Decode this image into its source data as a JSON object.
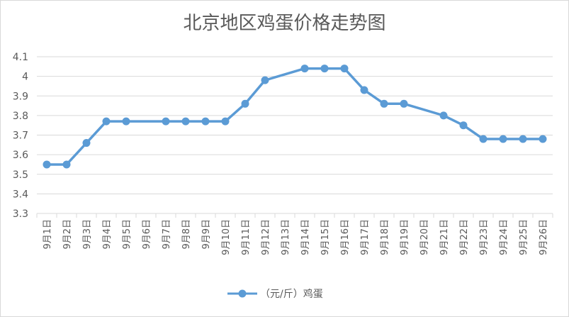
{
  "chart_data": {
    "type": "line",
    "title": "北京地区鸡蛋价格走势图",
    "xlabel": "",
    "ylabel": "",
    "categories": [
      "9月1日",
      "9月2日",
      "9月3日",
      "9月4日",
      "9月5日",
      "9月6日",
      "9月7日",
      "9月8日",
      "9月9日",
      "9月10日",
      "9月11日",
      "9月12日",
      "9月13日",
      "9月14日",
      "9月15日",
      "9月16日",
      "9月17日",
      "9月18日",
      "9月19日",
      "9月20日",
      "9月21日",
      "9月22日",
      "9月23日",
      "9月24日",
      "9月25日",
      "9月26日"
    ],
    "series": [
      {
        "name": "（元/斤）鸡蛋",
        "color": "#5b9bd5",
        "values": [
          3.55,
          3.55,
          3.66,
          3.77,
          3.77,
          null,
          3.77,
          3.77,
          3.77,
          3.77,
          3.86,
          3.98,
          null,
          4.04,
          4.04,
          4.04,
          3.93,
          3.86,
          3.86,
          null,
          3.8,
          3.75,
          3.68,
          3.68,
          3.68,
          3.68
        ]
      }
    ],
    "ylim": [
      3.3,
      4.1
    ],
    "yticks": [
      3.3,
      3.4,
      3.5,
      3.6,
      3.7,
      3.8,
      3.9,
      4.0,
      4.1
    ],
    "ytick_labels": [
      "3.3",
      "3.4",
      "3.5",
      "3.6",
      "3.7",
      "3.8",
      "3.9",
      "4",
      "4.1"
    ],
    "grid": true,
    "legend_position": "bottom"
  }
}
